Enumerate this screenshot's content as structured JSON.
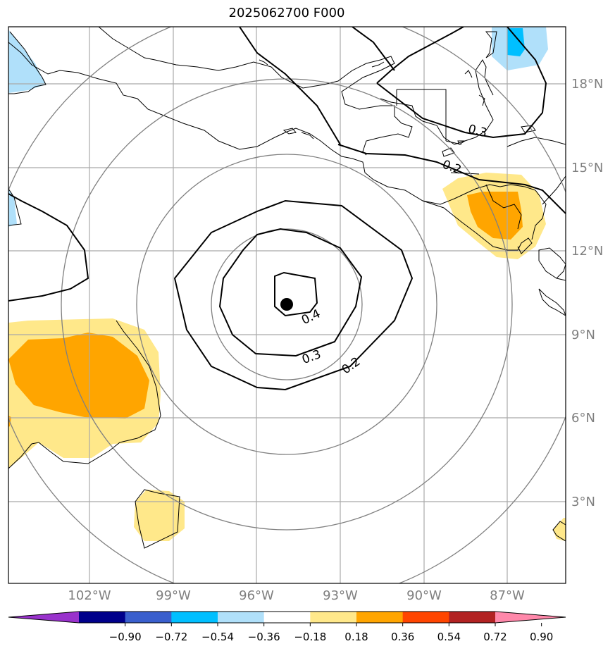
{
  "title": "2025062700 F000",
  "lon_labels": [
    "102°W",
    "99°W",
    "96°W",
    "93°W",
    "90°W",
    "87°W"
  ],
  "lat_labels": [
    "18°N",
    "15°N",
    "12°N",
    "9°N",
    "6°N",
    "3°N"
  ],
  "contour_labels": [
    "0.4",
    "0.3",
    "0.2",
    "0.3",
    "0.2"
  ],
  "colorbar": {
    "ticks": [
      "−0.90",
      "−0.72",
      "−0.54",
      "−0.36",
      "−0.18",
      "0.18",
      "0.36",
      "0.54",
      "0.72",
      "0.90"
    ],
    "colors": [
      "#9932cc",
      "#00008b",
      "#3a5fcd",
      "#00bfff",
      "#b0e0fa",
      "#ffffff",
      "#ffe88a",
      "#ffa500",
      "#ff4500",
      "#b22222",
      "#ff88aa"
    ]
  },
  "center_marker": {
    "lon": -95.0,
    "lat": 10.0
  },
  "colors": {
    "fill_light_yellow": "#ffe88a",
    "fill_orange": "#ffa500",
    "fill_light_blue": "#b0e0fa",
    "fill_blue": "#00bfff",
    "grid": "#a9a9a9",
    "range_rings": "#808080",
    "contour": "#000000"
  }
}
